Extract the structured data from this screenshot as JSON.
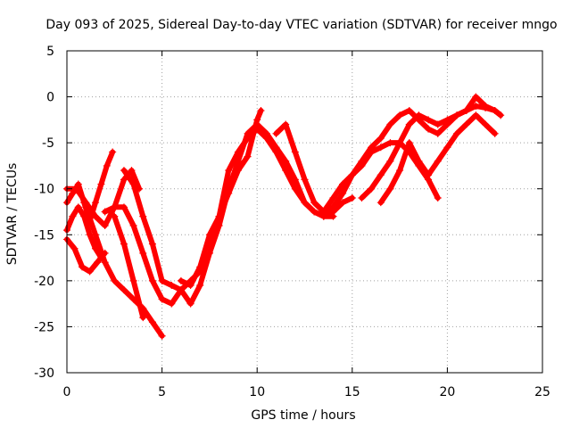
{
  "chart_data": {
    "type": "scatter",
    "title": "Day 093 of 2025, Sidereal Day-to-day VTEC variation (SDTVAR) for receiver mngo",
    "xlabel": "GPS time / hours",
    "ylabel": "SDTVAR / TECUs",
    "xlim": [
      0,
      25
    ],
    "ylim": [
      -30,
      5
    ],
    "xticks": [
      0,
      5,
      10,
      15,
      20,
      25
    ],
    "yticks": [
      5,
      0,
      -5,
      -10,
      -15,
      -20,
      -25,
      -30
    ],
    "grid": true,
    "marker": "plus",
    "color": "#ff0000",
    "series": [
      {
        "x": [
          0.0,
          0.3,
          0.6,
          0.9,
          1.2,
          1.5,
          1.8,
          2.1,
          2.4
        ],
        "y": [
          -11.5,
          -10.5,
          -9.5,
          -11.5,
          -13.5,
          -11.5,
          -9.5,
          -7.5,
          -6.0
        ]
      },
      {
        "x": [
          0.0,
          0.4,
          0.8,
          1.2,
          1.6,
          2.0
        ],
        "y": [
          -15.5,
          -16.5,
          -18.5,
          -19.0,
          -18.0,
          -17.0
        ]
      },
      {
        "x": [
          0.0,
          0.3,
          0.6,
          0.9,
          1.2,
          1.5,
          1.8
        ],
        "y": [
          -14.5,
          -13.0,
          -12.0,
          -13.0,
          -15.0,
          -16.5,
          -17.5
        ]
      },
      {
        "x": [
          0.0,
          0.5,
          1.0,
          1.5,
          2.0,
          2.5,
          3.0,
          3.4,
          3.8
        ],
        "y": [
          -10.0,
          -10.0,
          -11.5,
          -13.0,
          -14.0,
          -12.0,
          -9.0,
          -8.0,
          -10.0
        ]
      },
      {
        "x": [
          2.0,
          2.5,
          3.0,
          3.5,
          4.0,
          4.5,
          5.0,
          5.5,
          6.0,
          6.5,
          7.0,
          7.5,
          8.0,
          8.5,
          9.0,
          9.5,
          10.0,
          10.5,
          11.0,
          11.5,
          12.0,
          12.5,
          13.0,
          13.5,
          14.0,
          14.5,
          15.0
        ],
        "y": [
          -12.5,
          -12.0,
          -12.0,
          -14.0,
          -17.0,
          -20.0,
          -22.0,
          -22.5,
          -21.0,
          -20.0,
          -19.0,
          -17.0,
          -14.0,
          -10.0,
          -7.0,
          -4.0,
          -3.0,
          -4.0,
          -5.5,
          -7.0,
          -9.0,
          -11.5,
          -12.5,
          -13.0,
          -12.5,
          -11.5,
          -11.0
        ]
      },
      {
        "x": [
          3.0,
          3.5,
          4.0,
          4.5,
          5.0,
          5.5,
          6.0,
          6.5,
          7.0,
          7.5,
          8.0,
          8.5,
          9.0,
          9.5,
          10.0,
          10.5,
          11.0,
          11.5,
          12.0,
          12.5,
          13.0,
          13.5,
          14.0
        ],
        "y": [
          -8.0,
          -9.5,
          -13.0,
          -16.0,
          -20.0,
          -20.5,
          -21.0,
          -22.5,
          -20.5,
          -17.0,
          -13.0,
          -8.0,
          -6.0,
          -4.5,
          -3.5,
          -4.5,
          -6.0,
          -8.0,
          -10.0,
          -11.5,
          -12.5,
          -13.0,
          -13.0
        ]
      },
      {
        "x": [
          1.0,
          1.5,
          2.0,
          2.5,
          3.0,
          3.5,
          4.0,
          4.5,
          5.0
        ],
        "y": [
          -12.0,
          -15.0,
          -18.0,
          -20.0,
          -21.0,
          -22.0,
          -23.0,
          -24.5,
          -26.0
        ]
      },
      {
        "x": [
          2.5,
          3.0,
          3.5,
          4.0
        ],
        "y": [
          -13.0,
          -16.0,
          -20.0,
          -24.0
        ]
      },
      {
        "x": [
          6.0,
          6.5,
          7.0,
          7.5,
          8.0,
          8.5,
          9.0,
          9.5,
          10.0,
          10.2
        ],
        "y": [
          -20.0,
          -20.5,
          -18.5,
          -15.0,
          -13.0,
          -10.5,
          -8.0,
          -6.5,
          -2.5,
          -1.5
        ]
      },
      {
        "x": [
          11.0,
          11.5,
          12.0,
          12.5,
          13.0,
          13.5,
          14.0,
          14.5,
          15.0,
          15.5,
          16.0,
          16.5,
          17.0,
          17.5,
          18.0,
          18.5,
          19.0,
          19.5,
          20.0,
          20.5,
          21.0,
          21.5,
          22.0,
          22.5,
          22.8
        ],
        "y": [
          -4.0,
          -3.0,
          -6.0,
          -9.0,
          -11.5,
          -12.5,
          -11.0,
          -9.5,
          -8.5,
          -7.0,
          -5.5,
          -4.5,
          -3.0,
          -2.0,
          -1.5,
          -2.5,
          -3.5,
          -4.0,
          -3.0,
          -2.0,
          -1.5,
          0.0,
          -1.0,
          -1.5,
          -2.0
        ]
      },
      {
        "x": [
          13.5,
          14.0,
          14.5,
          15.0,
          15.5,
          16.0,
          16.5,
          17.0,
          17.5,
          18.0,
          18.5,
          19.0,
          19.5
        ],
        "y": [
          -13.0,
          -12.0,
          -10.5,
          -8.5,
          -7.5,
          -6.0,
          -5.5,
          -5.0,
          -5.0,
          -6.0,
          -7.5,
          -9.0,
          -11.0
        ]
      },
      {
        "x": [
          15.5,
          16.0,
          16.5,
          17.0,
          17.5,
          18.0,
          18.5,
          19.0,
          19.5,
          20.0,
          20.5,
          21.0,
          21.5,
          22.0,
          22.5,
          22.8
        ],
        "y": [
          -11.0,
          -10.0,
          -8.5,
          -7.0,
          -5.0,
          -3.0,
          -2.0,
          -2.5,
          -3.0,
          -2.5,
          -2.0,
          -1.5,
          -1.0,
          -1.2,
          -1.5,
          -2.0
        ]
      },
      {
        "x": [
          16.5,
          17.0,
          17.5,
          18.0,
          18.5,
          19.0,
          19.5,
          20.0,
          20.5,
          21.0,
          21.5,
          22.0,
          22.5
        ],
        "y": [
          -11.5,
          -10.0,
          -8.0,
          -5.0,
          -7.0,
          -8.5,
          -7.0,
          -5.5,
          -4.0,
          -3.0,
          -2.0,
          -3.0,
          -4.0
        ]
      }
    ]
  }
}
